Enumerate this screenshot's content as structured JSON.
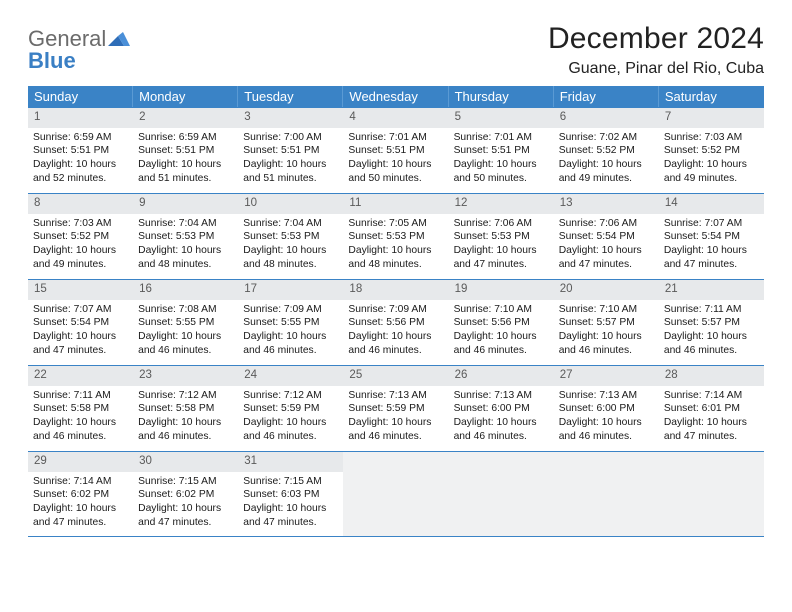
{
  "logo": {
    "word1": "General",
    "word2": "Blue"
  },
  "title": "December 2024",
  "location": "Guane, Pinar del Rio, Cuba",
  "colors": {
    "header_bg": "#3a83c6",
    "header_fg": "#ffffff",
    "daynum_bg": "#e7e9eb",
    "rule": "#3a83c6",
    "logo_gray": "#6b6b6b",
    "logo_blue": "#3a7fc4",
    "empty_bg": "#f0f1f2"
  },
  "weekdays": [
    "Sunday",
    "Monday",
    "Tuesday",
    "Wednesday",
    "Thursday",
    "Friday",
    "Saturday"
  ],
  "days": [
    {
      "n": 1,
      "sunrise": "6:59 AM",
      "sunset": "5:51 PM",
      "daylight": "10 hours and 52 minutes."
    },
    {
      "n": 2,
      "sunrise": "6:59 AM",
      "sunset": "5:51 PM",
      "daylight": "10 hours and 51 minutes."
    },
    {
      "n": 3,
      "sunrise": "7:00 AM",
      "sunset": "5:51 PM",
      "daylight": "10 hours and 51 minutes."
    },
    {
      "n": 4,
      "sunrise": "7:01 AM",
      "sunset": "5:51 PM",
      "daylight": "10 hours and 50 minutes."
    },
    {
      "n": 5,
      "sunrise": "7:01 AM",
      "sunset": "5:51 PM",
      "daylight": "10 hours and 50 minutes."
    },
    {
      "n": 6,
      "sunrise": "7:02 AM",
      "sunset": "5:52 PM",
      "daylight": "10 hours and 49 minutes."
    },
    {
      "n": 7,
      "sunrise": "7:03 AM",
      "sunset": "5:52 PM",
      "daylight": "10 hours and 49 minutes."
    },
    {
      "n": 8,
      "sunrise": "7:03 AM",
      "sunset": "5:52 PM",
      "daylight": "10 hours and 49 minutes."
    },
    {
      "n": 9,
      "sunrise": "7:04 AM",
      "sunset": "5:53 PM",
      "daylight": "10 hours and 48 minutes."
    },
    {
      "n": 10,
      "sunrise": "7:04 AM",
      "sunset": "5:53 PM",
      "daylight": "10 hours and 48 minutes."
    },
    {
      "n": 11,
      "sunrise": "7:05 AM",
      "sunset": "5:53 PM",
      "daylight": "10 hours and 48 minutes."
    },
    {
      "n": 12,
      "sunrise": "7:06 AM",
      "sunset": "5:53 PM",
      "daylight": "10 hours and 47 minutes."
    },
    {
      "n": 13,
      "sunrise": "7:06 AM",
      "sunset": "5:54 PM",
      "daylight": "10 hours and 47 minutes."
    },
    {
      "n": 14,
      "sunrise": "7:07 AM",
      "sunset": "5:54 PM",
      "daylight": "10 hours and 47 minutes."
    },
    {
      "n": 15,
      "sunrise": "7:07 AM",
      "sunset": "5:54 PM",
      "daylight": "10 hours and 47 minutes."
    },
    {
      "n": 16,
      "sunrise": "7:08 AM",
      "sunset": "5:55 PM",
      "daylight": "10 hours and 46 minutes."
    },
    {
      "n": 17,
      "sunrise": "7:09 AM",
      "sunset": "5:55 PM",
      "daylight": "10 hours and 46 minutes."
    },
    {
      "n": 18,
      "sunrise": "7:09 AM",
      "sunset": "5:56 PM",
      "daylight": "10 hours and 46 minutes."
    },
    {
      "n": 19,
      "sunrise": "7:10 AM",
      "sunset": "5:56 PM",
      "daylight": "10 hours and 46 minutes."
    },
    {
      "n": 20,
      "sunrise": "7:10 AM",
      "sunset": "5:57 PM",
      "daylight": "10 hours and 46 minutes."
    },
    {
      "n": 21,
      "sunrise": "7:11 AM",
      "sunset": "5:57 PM",
      "daylight": "10 hours and 46 minutes."
    },
    {
      "n": 22,
      "sunrise": "7:11 AM",
      "sunset": "5:58 PM",
      "daylight": "10 hours and 46 minutes."
    },
    {
      "n": 23,
      "sunrise": "7:12 AM",
      "sunset": "5:58 PM",
      "daylight": "10 hours and 46 minutes."
    },
    {
      "n": 24,
      "sunrise": "7:12 AM",
      "sunset": "5:59 PM",
      "daylight": "10 hours and 46 minutes."
    },
    {
      "n": 25,
      "sunrise": "7:13 AM",
      "sunset": "5:59 PM",
      "daylight": "10 hours and 46 minutes."
    },
    {
      "n": 26,
      "sunrise": "7:13 AM",
      "sunset": "6:00 PM",
      "daylight": "10 hours and 46 minutes."
    },
    {
      "n": 27,
      "sunrise": "7:13 AM",
      "sunset": "6:00 PM",
      "daylight": "10 hours and 46 minutes."
    },
    {
      "n": 28,
      "sunrise": "7:14 AM",
      "sunset": "6:01 PM",
      "daylight": "10 hours and 47 minutes."
    },
    {
      "n": 29,
      "sunrise": "7:14 AM",
      "sunset": "6:02 PM",
      "daylight": "10 hours and 47 minutes."
    },
    {
      "n": 30,
      "sunrise": "7:15 AM",
      "sunset": "6:02 PM",
      "daylight": "10 hours and 47 minutes."
    },
    {
      "n": 31,
      "sunrise": "7:15 AM",
      "sunset": "6:03 PM",
      "daylight": "10 hours and 47 minutes."
    }
  ],
  "labels": {
    "sunrise": "Sunrise:",
    "sunset": "Sunset:",
    "daylight": "Daylight:"
  },
  "layout": {
    "trailing_empty": 4,
    "columns": 7
  }
}
